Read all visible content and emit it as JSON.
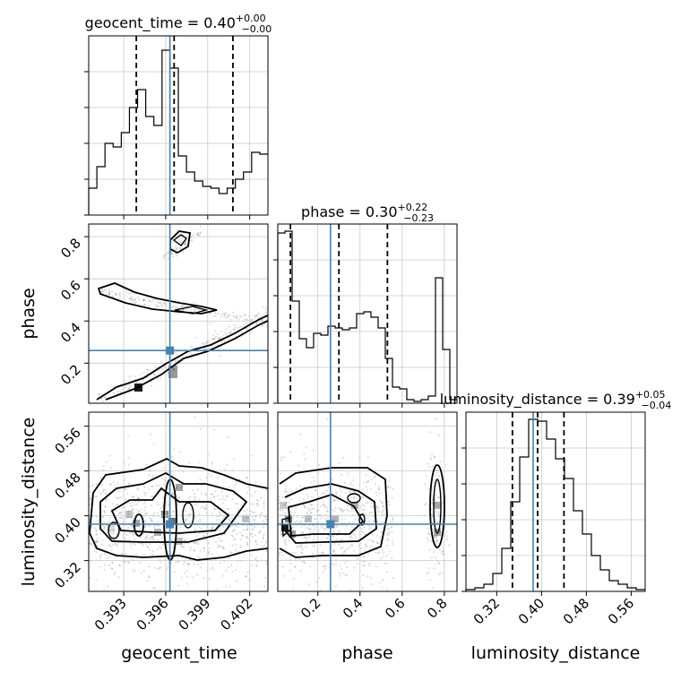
{
  "colors": {
    "truth": "#4682b4",
    "line": "#000000",
    "grid": "#c8c8c8"
  },
  "chart_data": {
    "type": "corner",
    "titles": [
      {
        "param": "geocent_time",
        "name": "geocent_time",
        "median": "0.40",
        "plus": "+0.00",
        "minus": "−0.00"
      },
      {
        "param": "phase",
        "name": "phase",
        "median": "0.30",
        "plus": "+0.22",
        "minus": "−0.23"
      },
      {
        "param": "luminosity_distance",
        "name": "luminosity_distance",
        "median": "0.39",
        "plus": "+0.05",
        "minus": "−0.04"
      }
    ],
    "axes": {
      "geocent_time": {
        "label": "geocent_time",
        "range": [
          0.3905,
          0.4033
        ],
        "ticks": [
          0.393,
          0.396,
          0.399,
          0.402
        ],
        "tick_labels": [
          "0.393",
          "0.396",
          "0.399",
          "0.402"
        ]
      },
      "phase": {
        "label": "phase",
        "range": [
          0.01,
          0.86
        ],
        "ticks": [
          0.2,
          0.4,
          0.6,
          0.8
        ],
        "tick_labels": [
          "0.2",
          "0.4",
          "0.6",
          "0.8"
        ]
      },
      "luminosity_distance": {
        "label": "luminosity_distance",
        "range": [
          0.265,
          0.585
        ],
        "ticks": [
          0.32,
          0.4,
          0.48,
          0.56
        ],
        "tick_labels": [
          "0.32",
          "0.40",
          "0.48",
          "0.56"
        ]
      }
    },
    "truths": {
      "geocent_time": 0.3963,
      "phase": 0.26,
      "luminosity_distance": 0.385
    },
    "quantiles": {
      "geocent_time": [
        0.3939,
        0.3966,
        0.4008
      ],
      "phase": [
        0.07,
        0.3,
        0.53
      ],
      "luminosity_distance": [
        0.348,
        0.393,
        0.44
      ]
    },
    "hist_1d": {
      "geocent_time": [
        0.15,
        0.27,
        0.4,
        0.38,
        0.46,
        0.6,
        0.7,
        0.55,
        0.5,
        0.92,
        0.82,
        0.33,
        0.24,
        0.19,
        0.16,
        0.15,
        0.12,
        0.15,
        0.2,
        0.24,
        0.35,
        0.34
      ],
      "phase": [
        0.95,
        0.96,
        0.57,
        0.36,
        0.31,
        0.39,
        0.38,
        0.43,
        0.42,
        0.41,
        0.42,
        0.5,
        0.51,
        0.48,
        0.42,
        0.25,
        0.09,
        0.08,
        0.02,
        0.01,
        0.02,
        0.04,
        0.7,
        0.3,
        0.02
      ],
      "luminosity_distance": [
        0.01,
        0.02,
        0.04,
        0.1,
        0.24,
        0.5,
        0.75,
        0.96,
        0.95,
        0.85,
        0.74,
        0.63,
        0.45,
        0.32,
        0.2,
        0.12,
        0.06,
        0.04,
        0.02,
        0.01
      ]
    }
  }
}
